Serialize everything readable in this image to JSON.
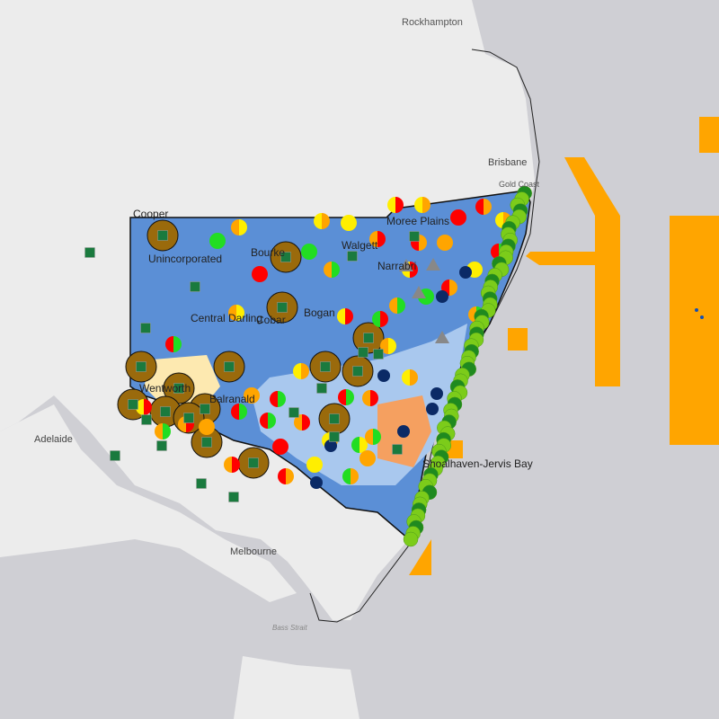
{
  "map": {
    "cities": [
      {
        "name": "Rockhampton"
      },
      {
        "name": "Brisbane"
      },
      {
        "name": "Gold Coast"
      },
      {
        "name": "Adelaide"
      },
      {
        "name": "Melbourne"
      }
    ],
    "sea_labels": [
      {
        "name": "Bass Strait"
      }
    ],
    "district_labels": [
      "Cooper",
      "Unincorporated",
      "Bourke",
      "Central Darling",
      "Cobar",
      "Bogan",
      "Walgett",
      "Moree Plains",
      "Narrabri",
      "Wentworth",
      "Balranald",
      "Shoalhaven-Jervis Bay"
    ],
    "colors": {
      "land": "#ececec",
      "sea": "#cfcfd4",
      "region_blue": "#5b8fd6",
      "light_blue": "#a9c8ee",
      "zone_orange": "#ffa500",
      "marker_brown": "#9a6a0c",
      "marker_square": "#1a7a3e",
      "marker_navy": "#0b2a66",
      "coast_green": "#7ccc1a"
    }
  }
}
